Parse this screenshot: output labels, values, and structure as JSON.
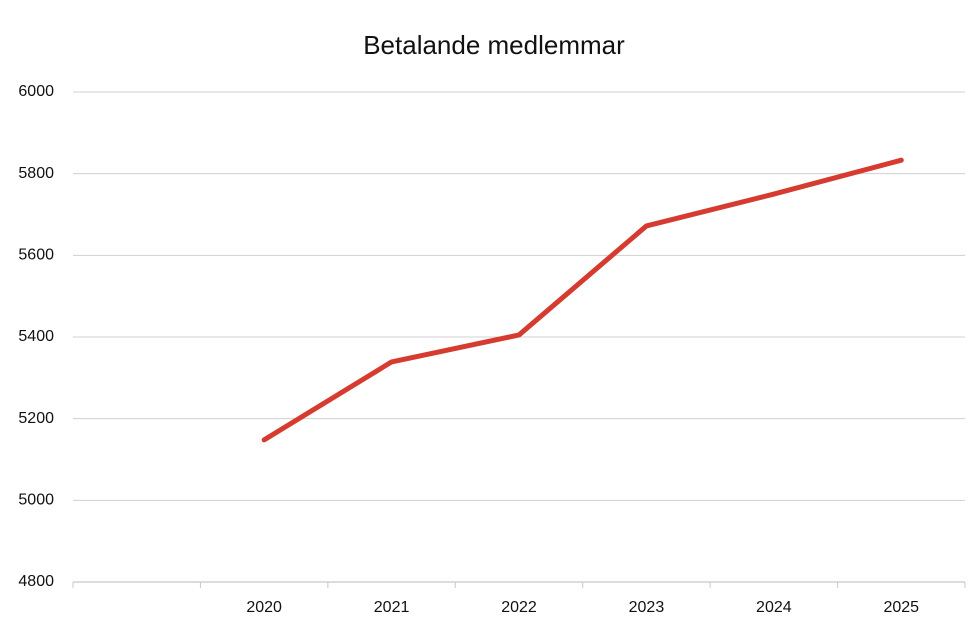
{
  "chart_data": {
    "type": "line",
    "title": "Betalande medlemmar",
    "categories": [
      null,
      "2020",
      "2021",
      "2022",
      "2023",
      "2024",
      "2025"
    ],
    "series": [
      {
        "name": "Betalande medlemmar",
        "color": "#d63b30",
        "values": [
          null,
          5148,
          5339,
          5405,
          5672,
          5750,
          5833
        ]
      }
    ],
    "ylim": [
      4800,
      6000
    ],
    "yticks": [
      4800,
      5000,
      5200,
      5400,
      5600,
      5800,
      6000
    ],
    "grid": true
  }
}
